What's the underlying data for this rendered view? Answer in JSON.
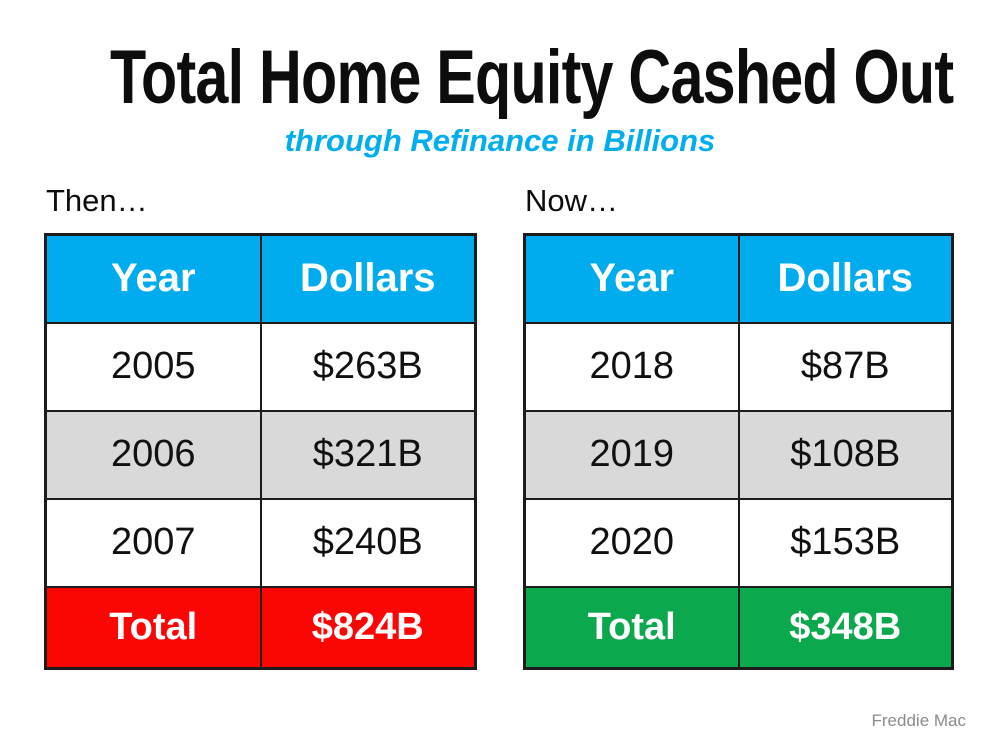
{
  "slide": {
    "title": "Total Home Equity Cashed Out",
    "subtitle": "through Refinance in Billions",
    "source": "Freddie Mac",
    "colors": {
      "header_blue": "#00ACEE",
      "subtitle_cyan": "#00AEEF",
      "row_gray": "#D9D9D9",
      "total_red": "#FB0505",
      "total_green": "#0BA84E",
      "source_gray": "#8C8C8C"
    }
  },
  "tables": {
    "then": {
      "label": "Then…",
      "headers": [
        "Year",
        "Dollars"
      ],
      "rows": [
        [
          "2005",
          "$263B"
        ],
        [
          "2006",
          "$321B"
        ],
        [
          "2007",
          "$240B"
        ]
      ],
      "total": [
        "Total",
        "$824B"
      ]
    },
    "now": {
      "label": "Now…",
      "headers": [
        "Year",
        "Dollars"
      ],
      "rows": [
        [
          "2018",
          "$87B"
        ],
        [
          "2019",
          "$108B"
        ],
        [
          "2020",
          "$153B"
        ]
      ],
      "total": [
        "Total",
        "$348B"
      ]
    }
  },
  "chart_data": [
    {
      "type": "table",
      "title": "Then…",
      "columns": [
        "Year",
        "Dollars"
      ],
      "rows": [
        [
          "2005",
          "$263B"
        ],
        [
          "2006",
          "$321B"
        ],
        [
          "2007",
          "$240B"
        ],
        [
          "Total",
          "$824B"
        ]
      ],
      "values_billions": {
        "2005": 263,
        "2006": 321,
        "2007": 240,
        "total": 824
      },
      "units": "USD billions"
    },
    {
      "type": "table",
      "title": "Now…",
      "columns": [
        "Year",
        "Dollars"
      ],
      "rows": [
        [
          "2018",
          "$87B"
        ],
        [
          "2019",
          "$108B"
        ],
        [
          "2020",
          "$153B"
        ],
        [
          "Total",
          "$348B"
        ]
      ],
      "values_billions": {
        "2018": 87,
        "2019": 108,
        "2020": 153,
        "total": 348
      },
      "units": "USD billions"
    }
  ]
}
